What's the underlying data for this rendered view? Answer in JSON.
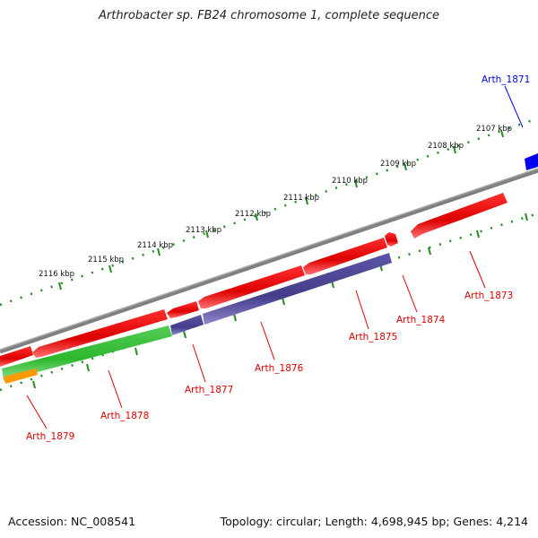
{
  "title": "Arthrobacter sp. FB24 chromosome 1, complete sequence",
  "footer": {
    "accession": "Accession: NC_008541",
    "topology": "Topology: circular; Length: 4,698,945 bp; Genes: 4,214"
  },
  "ticks": [
    {
      "label": "2107 kbp"
    },
    {
      "label": "2108 kbp"
    },
    {
      "label": "2109 kbp"
    },
    {
      "label": "2110 kbp"
    },
    {
      "label": "2111 kbp"
    },
    {
      "label": "2112 kbp"
    },
    {
      "label": "2113 kbp"
    },
    {
      "label": "2114 kbp"
    },
    {
      "label": "2115 kbp"
    },
    {
      "label": "2116 kbp"
    }
  ],
  "genes": [
    {
      "id": "Arth_1871",
      "strand": "forward",
      "color": "#0000ee"
    },
    {
      "id": "Arth_1873",
      "strand": "reverse",
      "color": "#dd0000"
    },
    {
      "id": "Arth_1874",
      "strand": "reverse",
      "color": "#dd0000"
    },
    {
      "id": "Arth_1875",
      "strand": "reverse",
      "color": "#dd0000"
    },
    {
      "id": "Arth_1876",
      "strand": "reverse",
      "color": "#dd0000"
    },
    {
      "id": "Arth_1877",
      "strand": "reverse",
      "color": "#dd0000"
    },
    {
      "id": "Arth_1878",
      "strand": "reverse",
      "color": "#dd0000"
    },
    {
      "id": "Arth_1879",
      "strand": "reverse",
      "color": "#dd0000"
    }
  ],
  "colors": {
    "backbone": "#808080",
    "tick": "#228b22",
    "red_feature": "#e00000",
    "purple_feature": "#4a4590",
    "green_feature": "#33bb33",
    "orange_feature": "#ff9900",
    "blue_feature": "#0000ee"
  }
}
